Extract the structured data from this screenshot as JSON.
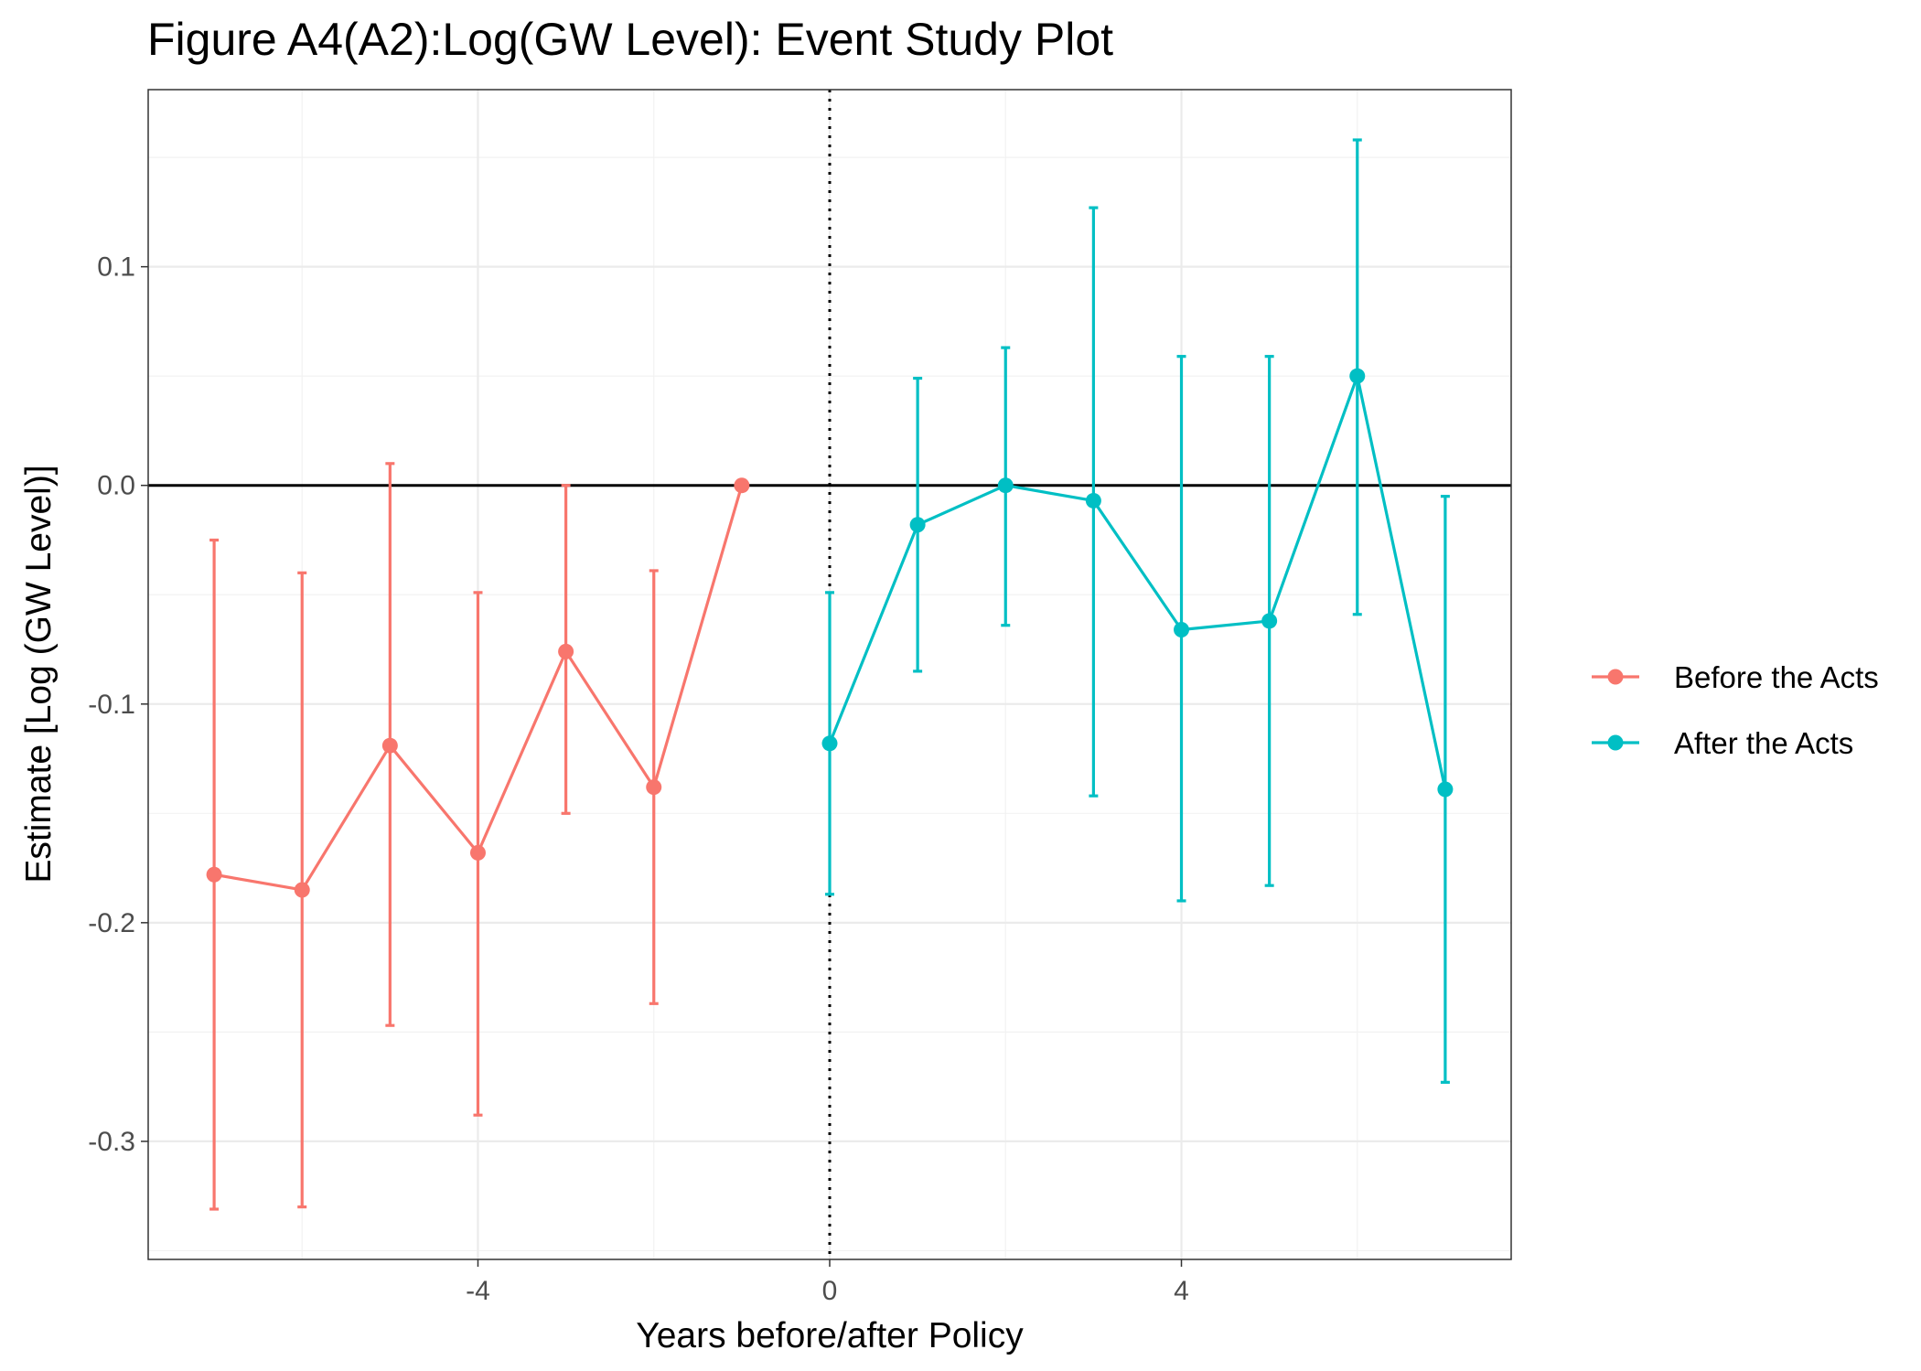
{
  "chart_data": {
    "type": "line",
    "title": "Figure A4(A2):Log(GW Level): Event Study Plot",
    "xlabel": "Years before/after Policy",
    "ylabel": "Estimate [Log (GW Level)]",
    "xlim": [
      -7.75,
      7.75
    ],
    "ylim": [
      -0.354,
      0.181
    ],
    "x_ticks": [
      -4,
      0,
      4
    ],
    "x_tick_labels": [
      "-4",
      "0",
      "4"
    ],
    "y_ticks": [
      0.1,
      0.0,
      -0.1,
      -0.2,
      -0.3
    ],
    "y_tick_labels": [
      "0.1",
      "0.0",
      "-0.1",
      "-0.2",
      "-0.3"
    ],
    "reference_lines": {
      "horizontal_y": 0,
      "vertical_x": 0,
      "vertical_style": "dotted"
    },
    "grid": true,
    "legend_position": "right",
    "series": [
      {
        "name": "Before the Acts",
        "color": "#F8766D",
        "x": [
          -7,
          -6,
          -5,
          -4,
          -3,
          -2,
          -1
        ],
        "y": [
          -0.178,
          -0.185,
          -0.119,
          -0.168,
          -0.076,
          -0.138,
          0.0
        ],
        "lower": [
          -0.331,
          -0.33,
          -0.247,
          -0.288,
          -0.15,
          -0.237,
          null
        ],
        "upper": [
          -0.025,
          -0.04,
          0.01,
          -0.049,
          0.0,
          -0.039,
          null
        ]
      },
      {
        "name": "After the Acts",
        "color": "#00BFC4",
        "x": [
          0,
          1,
          2,
          3,
          4,
          5,
          6,
          7
        ],
        "y": [
          -0.118,
          -0.018,
          0.0,
          -0.007,
          -0.066,
          -0.062,
          0.05,
          -0.139
        ],
        "lower": [
          -0.187,
          -0.085,
          -0.064,
          -0.142,
          -0.19,
          -0.183,
          -0.059,
          -0.273
        ],
        "upper": [
          -0.049,
          0.049,
          0.063,
          0.127,
          0.059,
          0.059,
          0.158,
          -0.005
        ]
      }
    ]
  }
}
